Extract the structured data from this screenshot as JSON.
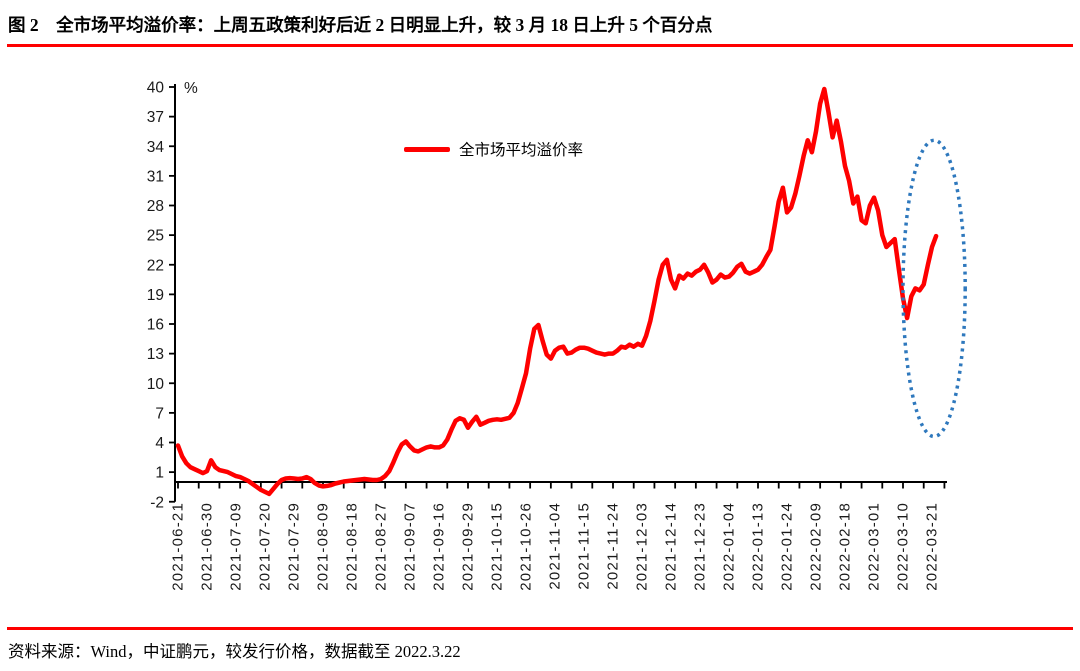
{
  "header": {
    "title": "图 2　全市场平均溢价率：上周五政策利好后近 2 日明显上升，较 3 月 18 日上升 5 个百分点"
  },
  "chart": {
    "legend": "全市场平均溢价率",
    "unit": "%"
  },
  "footer": {
    "source": "资料来源：Wind，中证鹏元，较发行价格，数据截至 2022.3.22"
  },
  "colors": {
    "rule_red": "#fe0000",
    "series_red": "#fe0000",
    "annotation_blue": "#2e78bd",
    "axis_black": "#000000"
  },
  "chart_data": {
    "type": "line",
    "title": "全市场平均溢价率",
    "unit": "%",
    "ylim": [
      -2,
      40
    ],
    "ytick_step": 3,
    "yticks": [
      40,
      37,
      34,
      31,
      28,
      25,
      22,
      19,
      16,
      13,
      10,
      7,
      4,
      1,
      -2
    ],
    "grid": false,
    "legend_position": "top-center",
    "x_start_date": "2021-06-21",
    "x_end_date": "2022-03-22",
    "frequency": "daily-trading-days",
    "label_every_n_days": 7,
    "tick_every_n_days": 5,
    "x_tick_labels": [
      "2021-06-21",
      "2021-06-30",
      "2021-07-09",
      "2021-07-20",
      "2021-07-29",
      "2021-08-09",
      "2021-08-18",
      "2021-08-27",
      "2021-09-07",
      "2021-09-16",
      "2021-09-29",
      "2021-10-15",
      "2021-10-26",
      "2021-11-04",
      "2021-11-15",
      "2021-11-24",
      "2021-12-03",
      "2021-12-14",
      "2021-12-23",
      "2022-01-04",
      "2022-01-13",
      "2022-01-24",
      "2022-02-09",
      "2022-02-18",
      "2022-03-01",
      "2022-03-10",
      "2022-03-21"
    ],
    "series": [
      {
        "name": "全市场平均溢价率",
        "color": "#fe0000",
        "values": [
          3.7,
          2.6,
          1.9,
          1.5,
          1.3,
          1.1,
          0.9,
          1.1,
          2.2,
          1.5,
          1.2,
          1.1,
          1.0,
          0.8,
          0.6,
          0.5,
          0.3,
          0.1,
          -0.2,
          -0.5,
          -0.8,
          -1.0,
          -1.2,
          -0.7,
          -0.2,
          0.2,
          0.35,
          0.4,
          0.35,
          0.3,
          0.35,
          0.5,
          0.3,
          -0.1,
          -0.35,
          -0.45,
          -0.4,
          -0.3,
          -0.15,
          -0.05,
          0.05,
          0.1,
          0.15,
          0.2,
          0.25,
          0.3,
          0.25,
          0.2,
          0.2,
          0.3,
          0.6,
          1.1,
          2.0,
          3.0,
          3.8,
          4.1,
          3.6,
          3.2,
          3.1,
          3.3,
          3.5,
          3.6,
          3.5,
          3.5,
          3.7,
          4.3,
          5.3,
          6.2,
          6.45,
          6.3,
          5.5,
          6.1,
          6.6,
          5.8,
          6.0,
          6.2,
          6.3,
          6.35,
          6.3,
          6.4,
          6.5,
          7.0,
          8.0,
          9.5,
          11.0,
          13.5,
          15.5,
          15.9,
          14.3,
          12.9,
          12.5,
          13.3,
          13.6,
          13.7,
          13.0,
          13.1,
          13.4,
          13.6,
          13.6,
          13.5,
          13.3,
          13.1,
          13.0,
          12.9,
          13.0,
          13.0,
          13.3,
          13.7,
          13.6,
          13.9,
          13.7,
          14.0,
          13.8,
          14.8,
          16.3,
          18.3,
          20.5,
          22.0,
          22.5,
          20.5,
          19.6,
          20.9,
          20.6,
          21.1,
          20.9,
          21.3,
          21.5,
          22.0,
          21.2,
          20.2,
          20.5,
          21.0,
          20.7,
          20.8,
          21.2,
          21.8,
          22.1,
          21.3,
          21.1,
          21.3,
          21.5,
          22.0,
          22.8,
          23.5,
          25.9,
          28.4,
          29.8,
          27.3,
          27.8,
          29.2,
          31.0,
          33.0,
          34.6,
          33.4,
          35.5,
          38.3,
          39.8,
          37.5,
          34.9,
          36.6,
          34.5,
          32.0,
          30.5,
          28.2,
          28.9,
          26.5,
          26.2,
          28.0,
          28.8,
          27.5,
          25.0,
          23.8,
          24.2,
          24.6,
          21.5,
          18.6,
          16.6,
          18.8,
          19.6,
          19.4,
          20.0,
          22.0,
          23.8,
          24.9
        ]
      }
    ],
    "annotation": {
      "shape": "ellipse",
      "style": "dotted",
      "color": "#2e78bd",
      "center_day": 182.5,
      "center_value": 19.6,
      "radius_days": 7.5,
      "radius_value": 15.0
    }
  }
}
